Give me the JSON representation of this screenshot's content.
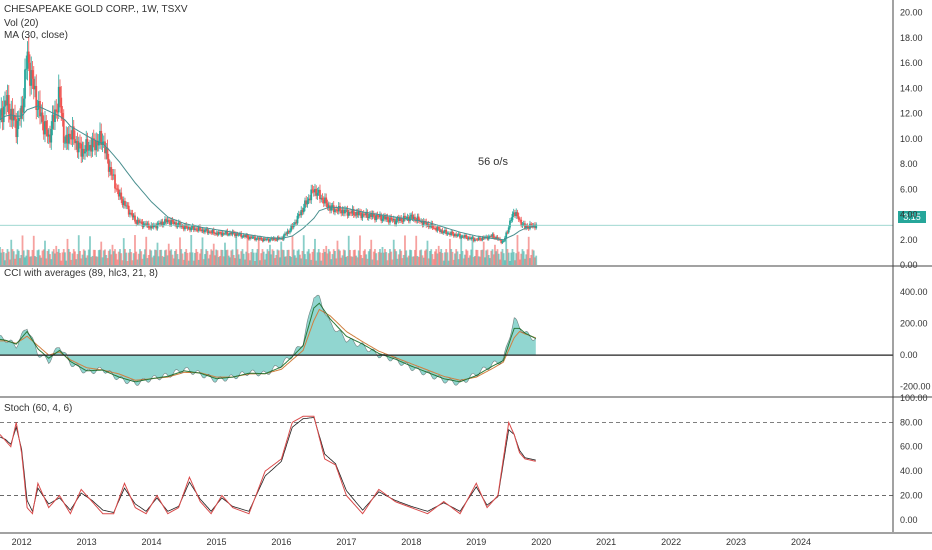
{
  "chart_data": [
    {
      "type": "candlestick",
      "title": "CHESAPEAKE GOLD CORP., 1W, TSXV",
      "indicators": [
        "Vol (20)",
        "MA (30, close)"
      ],
      "annotation": "56 o/s",
      "last_price": "3.15",
      "ylim": [
        0,
        21
      ],
      "y_ticks": [
        "0.00",
        "2.00",
        "4.00",
        "6.00",
        "8.00",
        "10.00",
        "12.00",
        "14.00",
        "16.00",
        "18.00",
        "20.00"
      ],
      "x": [
        "2011-09",
        "2011-10",
        "2011-11",
        "2011-12",
        "2012-01",
        "2012-02",
        "2012-04",
        "2012-06",
        "2012-08",
        "2012-09",
        "2012-10",
        "2012-12",
        "2013-02",
        "2013-04",
        "2013-05",
        "2013-07",
        "2013-10",
        "2014-01",
        "2014-04",
        "2014-07",
        "2014-10",
        "2015-01",
        "2015-04",
        "2015-07",
        "2015-10",
        "2016-01",
        "2016-03",
        "2016-05",
        "2016-07",
        "2016-08",
        "2016-10",
        "2017-01",
        "2017-04",
        "2017-07",
        "2017-10",
        "2018-01",
        "2018-04",
        "2018-07",
        "2018-10",
        "2019-01",
        "2019-04",
        "2019-06",
        "2019-08",
        "2019-09",
        "2019-10",
        "2019-12"
      ],
      "close": [
        11.5,
        13.0,
        12.0,
        11.0,
        12.0,
        16.5,
        12.5,
        10.0,
        13.5,
        9.5,
        10.5,
        9.0,
        9.5,
        10.0,
        8.0,
        5.5,
        3.5,
        3.0,
        3.5,
        3.0,
        2.8,
        2.5,
        2.5,
        2.2,
        2.0,
        2.1,
        3.0,
        4.5,
        6.0,
        5.5,
        4.5,
        4.2,
        4.0,
        3.8,
        3.5,
        3.8,
        3.2,
        2.6,
        2.3,
        2.0,
        2.3,
        1.8,
        4.3,
        3.5,
        3.0,
        3.15
      ],
      "ma30": [
        11.5,
        11.8,
        11.9,
        11.8,
        11.8,
        12.3,
        12.6,
        12.2,
        11.8,
        11.5,
        11.0,
        10.5,
        10.0,
        9.6,
        9.2,
        8.2,
        6.5,
        5.0,
        3.8,
        3.3,
        3.0,
        2.8,
        2.6,
        2.4,
        2.2,
        2.1,
        2.3,
        2.9,
        3.7,
        4.3,
        4.6,
        4.5,
        4.2,
        4.0,
        3.8,
        3.6,
        3.4,
        3.0,
        2.6,
        2.3,
        2.1,
        2.0,
        2.4,
        2.7,
        2.9,
        3.1
      ],
      "volume_scale": "relative"
    },
    {
      "type": "line",
      "title": "CCI with averages (89, hlc3, 21, 8)",
      "ylim": [
        -260,
        560
      ],
      "y_ticks": [
        "-200.00",
        "0.00",
        "200.00",
        "400.00"
      ],
      "x": [
        "2011-09",
        "2011-10",
        "2011-12",
        "2012-02",
        "2012-04",
        "2012-06",
        "2012-08",
        "2012-10",
        "2013-01",
        "2013-04",
        "2013-07",
        "2013-10",
        "2014-01",
        "2014-04",
        "2014-07",
        "2014-10",
        "2015-01",
        "2015-04",
        "2015-07",
        "2015-10",
        "2016-01",
        "2016-03",
        "2016-05",
        "2016-07",
        "2016-08",
        "2016-10",
        "2017-01",
        "2017-04",
        "2017-07",
        "2017-10",
        "2018-01",
        "2018-04",
        "2018-07",
        "2018-10",
        "2019-01",
        "2019-04",
        "2019-06",
        "2019-08",
        "2019-09",
        "2019-10",
        "2019-12"
      ],
      "cci": [
        110,
        100,
        60,
        180,
        10,
        -40,
        60,
        -50,
        -110,
        -90,
        -150,
        -180,
        -150,
        -130,
        -90,
        -120,
        -160,
        -140,
        -110,
        -120,
        -60,
        0,
        80,
        380,
        360,
        200,
        100,
        60,
        0,
        -30,
        -80,
        -120,
        -160,
        -180,
        -120,
        -60,
        -30,
        230,
        180,
        140,
        100
      ],
      "avg_fast": [
        100,
        95,
        70,
        150,
        40,
        -20,
        30,
        -40,
        -100,
        -95,
        -140,
        -170,
        -150,
        -135,
        -100,
        -115,
        -150,
        -140,
        -115,
        -118,
        -75,
        -10,
        60,
        300,
        330,
        230,
        120,
        70,
        10,
        -25,
        -70,
        -110,
        -150,
        -170,
        -130,
        -70,
        -35,
        170,
        170,
        140,
        105
      ],
      "avg_slow": [
        90,
        90,
        75,
        120,
        60,
        0,
        20,
        -30,
        -80,
        -95,
        -120,
        -160,
        -150,
        -140,
        -110,
        -112,
        -140,
        -140,
        -120,
        -118,
        -90,
        -30,
        30,
        220,
        290,
        250,
        150,
        85,
        25,
        -15,
        -55,
        -95,
        -135,
        -160,
        -140,
        -85,
        -45,
        110,
        150,
        135,
        110
      ]
    },
    {
      "type": "line",
      "title": "Stoch (60, 4, 6)",
      "ylim": [
        -10,
        100
      ],
      "y_ticks": [
        "0.00",
        "20.00",
        "40.00",
        "60.00",
        "80.00",
        "100.00"
      ],
      "bands": [
        80,
        20
      ],
      "x": [
        "2011-09",
        "2011-10",
        "2011-11",
        "2011-12",
        "2012-01",
        "2012-02",
        "2012-03",
        "2012-04",
        "2012-06",
        "2012-08",
        "2012-10",
        "2012-12",
        "2013-02",
        "2013-04",
        "2013-06",
        "2013-08",
        "2013-10",
        "2013-12",
        "2014-02",
        "2014-04",
        "2014-06",
        "2014-08",
        "2014-10",
        "2014-12",
        "2015-02",
        "2015-04",
        "2015-07",
        "2015-10",
        "2016-01",
        "2016-03",
        "2016-05",
        "2016-07",
        "2016-09",
        "2016-11",
        "2017-01",
        "2017-04",
        "2017-07",
        "2017-10",
        "2018-01",
        "2018-04",
        "2018-07",
        "2018-10",
        "2019-01",
        "2019-03",
        "2019-05",
        "2019-07",
        "2019-08",
        "2019-09",
        "2019-10",
        "2019-12"
      ],
      "k": [
        70,
        65,
        60,
        80,
        55,
        10,
        5,
        30,
        10,
        20,
        5,
        25,
        15,
        5,
        5,
        30,
        10,
        5,
        20,
        5,
        10,
        35,
        15,
        5,
        20,
        10,
        5,
        40,
        50,
        80,
        85,
        85,
        50,
        45,
        20,
        5,
        25,
        15,
        10,
        5,
        15,
        5,
        30,
        10,
        20,
        80,
        70,
        55,
        50,
        48
      ],
      "d": [
        68,
        66,
        62,
        76,
        58,
        16,
        7,
        26,
        13,
        18,
        8,
        22,
        16,
        8,
        6,
        26,
        13,
        7,
        18,
        7,
        11,
        31,
        17,
        7,
        18,
        11,
        7,
        36,
        48,
        76,
        83,
        84,
        54,
        46,
        24,
        8,
        23,
        16,
        11,
        7,
        14,
        7,
        27,
        12,
        19,
        74,
        70,
        57,
        51,
        49
      ]
    }
  ],
  "x_axis": {
    "start": "2011-09",
    "end": "2025-06",
    "labels": [
      "2012",
      "2013",
      "2014",
      "2015",
      "2016",
      "2017",
      "2018",
      "2019",
      "2020",
      "2021",
      "2022",
      "2023",
      "2024"
    ]
  },
  "colors": {
    "up": "#26a69a",
    "down": "#ef5350",
    "ma": "#4a8f8f",
    "cci_fill": "#7ecfc8",
    "cci_line": "#222222",
    "cci_avg_fast": "#2a7a3a",
    "cci_avg_slow": "#d08040",
    "stoch_k": "#d94a4a",
    "stoch_d": "#222222",
    "price_line": "#7fc9c1",
    "text": "#333333",
    "pane_border": "#444444"
  }
}
